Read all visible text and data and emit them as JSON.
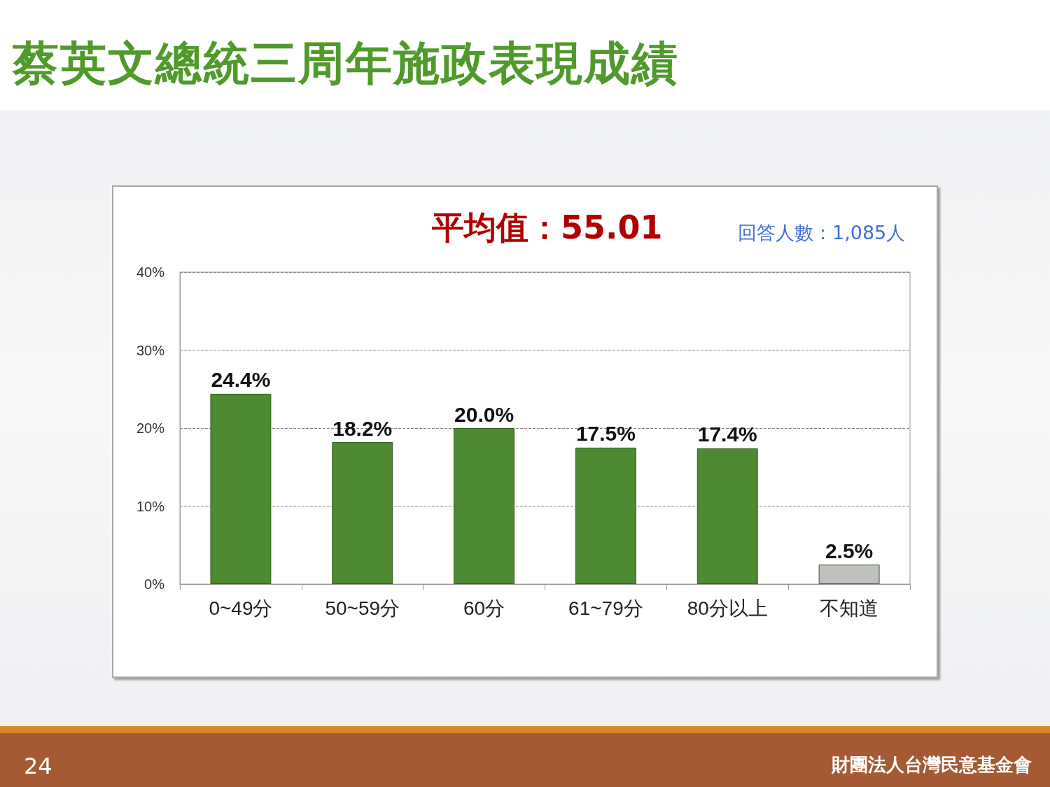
{
  "chart_data": {
    "type": "bar",
    "title": "蔡英文總統三周年施政表現成績",
    "subtitle": "平均值：55.01",
    "annotations": [
      "回答人數：1,085人",
      "24",
      "財團法人台灣民意基金會"
    ],
    "categories": [
      "0~49分",
      "50~59分",
      "60分",
      "61~79分",
      "80分以上",
      "不知道"
    ],
    "values": [
      24.4,
      18.2,
      20.0,
      17.5,
      17.4,
      2.5
    ],
    "colors": [
      "#4e8a32",
      "#4e8a32",
      "#4e8a32",
      "#4e8a32",
      "#4e8a32",
      "#c0c0c0"
    ],
    "value_labels": [
      "24.4%",
      "18.2%",
      "20.0%",
      "17.5%",
      "17.4%",
      "2.5%"
    ],
    "ylim": [
      0,
      40
    ],
    "yticks": [
      {
        "value": 0,
        "label": "0%"
      },
      {
        "value": 10,
        "label": "10%"
      },
      {
        "value": 20,
        "label": "20%"
      },
      {
        "value": 30,
        "label": "30%"
      },
      {
        "value": 40,
        "label": "40%"
      }
    ],
    "grid": "y"
  }
}
